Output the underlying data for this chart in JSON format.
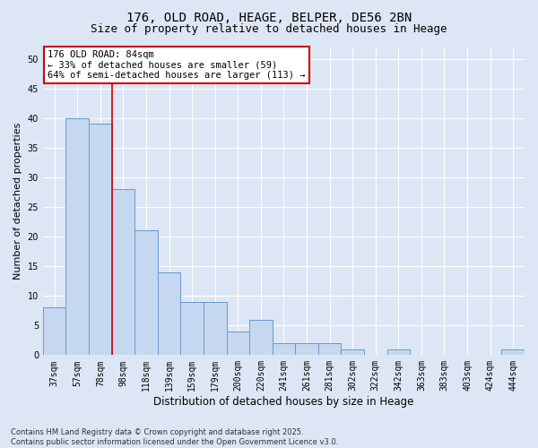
{
  "title_line1": "176, OLD ROAD, HEAGE, BELPER, DE56 2BN",
  "title_line2": "Size of property relative to detached houses in Heage",
  "xlabel": "Distribution of detached houses by size in Heage",
  "ylabel": "Number of detached properties",
  "categories": [
    "37sqm",
    "57sqm",
    "78sqm",
    "98sqm",
    "118sqm",
    "139sqm",
    "159sqm",
    "179sqm",
    "200sqm",
    "220sqm",
    "241sqm",
    "261sqm",
    "281sqm",
    "302sqm",
    "322sqm",
    "342sqm",
    "363sqm",
    "383sqm",
    "403sqm",
    "424sqm",
    "444sqm"
  ],
  "values": [
    8,
    40,
    39,
    28,
    21,
    14,
    9,
    9,
    4,
    6,
    2,
    2,
    2,
    1,
    0,
    1,
    0,
    0,
    0,
    0,
    1
  ],
  "bar_color": "#c5d8f0",
  "bar_edge_color": "#6699cc",
  "vline_x": 2.5,
  "vline_color": "#cc0000",
  "annotation_text": "176 OLD ROAD: 84sqm\n← 33% of detached houses are smaller (59)\n64% of semi-detached houses are larger (113) →",
  "annotation_box_color": "#ffffff",
  "annotation_box_edge_color": "#cc0000",
  "ylim": [
    0,
    52
  ],
  "yticks": [
    0,
    5,
    10,
    15,
    20,
    25,
    30,
    35,
    40,
    45,
    50
  ],
  "background_color": "#dde6f5",
  "grid_color": "#ffffff",
  "footer_text": "Contains HM Land Registry data © Crown copyright and database right 2025.\nContains public sector information licensed under the Open Government Licence v3.0.",
  "title_fontsize": 10,
  "subtitle_fontsize": 9,
  "tick_fontsize": 7,
  "ylabel_fontsize": 8,
  "xlabel_fontsize": 8.5,
  "annot_fontsize": 7.5
}
